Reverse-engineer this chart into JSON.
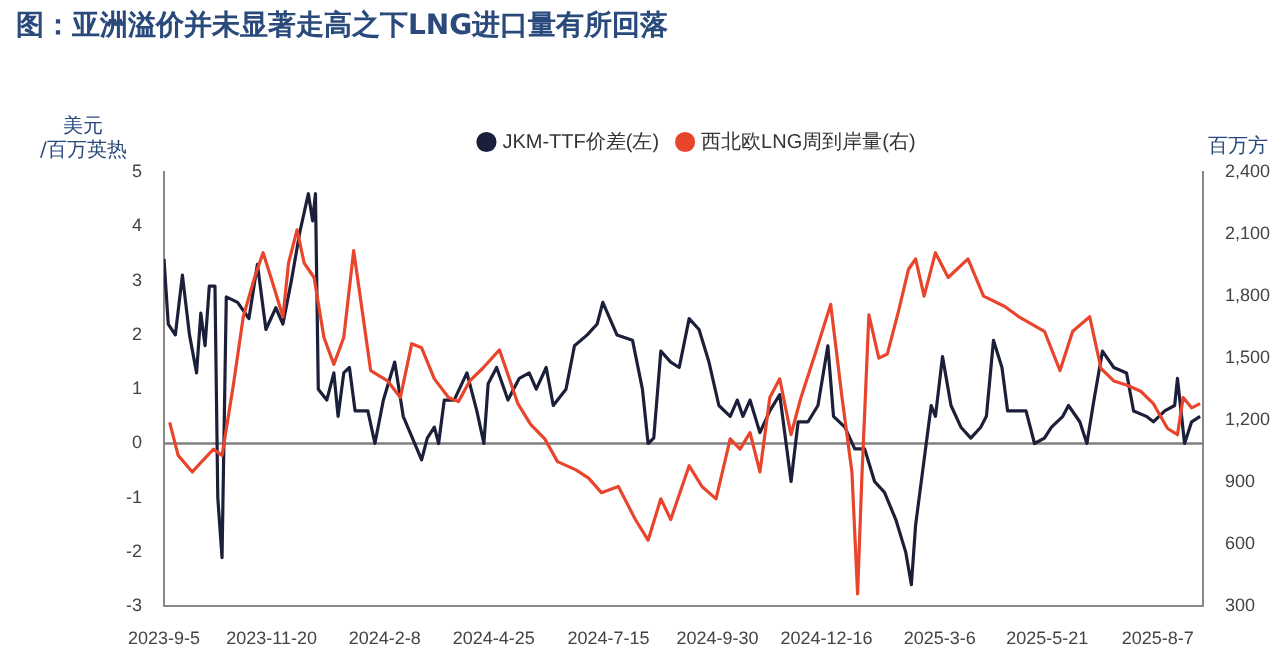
{
  "chart_data": {
    "type": "line",
    "title": "图：亚洲溢价并未显著走高之下LNG进口量有所回落",
    "ylabel": "美元/百万英热",
    "y2label": "百万方",
    "xlim": [
      "2023-09-05",
      "2025-09-08"
    ],
    "xticks": [
      {
        "value": "2023-09-05",
        "label": "2023-9-5"
      },
      {
        "value": "2023-11-20",
        "label": "2023-11-20"
      },
      {
        "value": "2024-02-08",
        "label": "2024-2-8"
      },
      {
        "value": "2024-04-25",
        "label": "2024-4-25"
      },
      {
        "value": "2024-07-15",
        "label": "2024-7-15"
      },
      {
        "value": "2024-09-30",
        "label": "2024-9-30"
      },
      {
        "value": "2024-12-16",
        "label": "2024-12-16"
      },
      {
        "value": "2025-03-06",
        "label": "2025-3-6"
      },
      {
        "value": "2025-05-21",
        "label": "2025-5-21"
      },
      {
        "value": "2025-08-07",
        "label": "2025-8-7"
      }
    ],
    "ylim": [
      -3,
      5
    ],
    "yticks": [
      -3,
      -2,
      -1,
      0,
      1,
      2,
      3,
      4,
      5
    ],
    "y2lim": [
      300,
      2400
    ],
    "y2ticks": [
      {
        "value": 300,
        "label": "300"
      },
      {
        "value": 600,
        "label": "600"
      },
      {
        "value": 900,
        "label": "900"
      },
      {
        "value": 1200,
        "label": "1,200"
      },
      {
        "value": 1500,
        "label": "1,500"
      },
      {
        "value": 1800,
        "label": "1,800"
      },
      {
        "value": 2100,
        "label": "2,100"
      },
      {
        "value": 2400,
        "label": "2,400"
      }
    ],
    "grid": false,
    "legend": "top",
    "marker": "none",
    "line_style": "solid",
    "ref_lines": [
      {
        "axis": "y",
        "value": 0,
        "color": "#808080"
      }
    ],
    "series": [
      {
        "name": "西北欧LNG周到岸量(右)",
        "color": "#e8452c",
        "axis": "y2",
        "x": [
          "2023-09-09",
          "2023-09-15",
          "2023-09-25",
          "2023-10-03",
          "2023-10-10",
          "2023-10-16",
          "2023-10-24",
          "2023-10-31",
          "2023-11-08",
          "2023-11-14",
          "2023-11-20",
          "2023-11-28",
          "2023-12-02",
          "2023-12-08",
          "2023-12-13",
          "2023-12-20",
          "2023-12-27",
          "2024-01-03",
          "2024-01-10",
          "2024-01-17",
          "2024-01-23",
          "2024-01-29",
          "2024-02-10",
          "2024-02-19",
          "2024-02-27",
          "2024-03-05",
          "2024-03-14",
          "2024-03-24",
          "2024-03-31",
          "2024-04-08",
          "2024-04-17",
          "2024-04-29",
          "2024-05-04",
          "2024-05-12",
          "2024-05-21",
          "2024-05-31",
          "2024-06-09",
          "2024-06-22",
          "2024-07-01",
          "2024-07-10",
          "2024-07-22",
          "2024-08-03",
          "2024-08-12",
          "2024-08-21",
          "2024-08-28",
          "2024-09-10",
          "2024-09-19",
          "2024-09-29",
          "2024-10-09",
          "2024-10-16",
          "2024-10-23",
          "2024-10-30",
          "2024-11-06",
          "2024-11-13",
          "2024-11-21",
          "2024-11-28",
          "2024-12-08",
          "2024-12-19",
          "2024-12-27",
          "2025-01-03",
          "2025-01-07",
          "2025-01-10",
          "2025-01-15",
          "2025-01-22",
          "2025-01-28",
          "2025-02-05",
          "2025-02-12",
          "2025-02-17",
          "2025-02-23",
          "2025-03-03",
          "2025-03-12",
          "2025-03-26",
          "2025-04-06",
          "2025-04-21",
          "2025-05-01",
          "2025-05-19",
          "2025-05-30",
          "2025-06-08",
          "2025-06-20",
          "2025-06-28",
          "2025-07-07",
          "2025-07-16",
          "2025-07-26",
          "2025-08-04",
          "2025-08-14",
          "2025-08-21",
          "2025-08-25",
          "2025-08-31",
          "2025-09-06"
        ],
        "values": [
          1190,
          1030,
          950,
          1010,
          1060,
          1030,
          1370,
          1700,
          1890,
          2010,
          1880,
          1700,
          1960,
          2120,
          1960,
          1890,
          1600,
          1470,
          1600,
          2020,
          1730,
          1440,
          1390,
          1310,
          1570,
          1550,
          1400,
          1310,
          1290,
          1390,
          1450,
          1540,
          1440,
          1280,
          1180,
          1110,
          1000,
          960,
          920,
          850,
          880,
          720,
          620,
          820,
          720,
          980,
          880,
          820,
          1110,
          1060,
          1140,
          950,
          1310,
          1400,
          1130,
          1310,
          1520,
          1760,
          1310,
          950,
          360,
          920,
          1710,
          1500,
          1520,
          1730,
          1930,
          1980,
          1800,
          2010,
          1890,
          1980,
          1800,
          1750,
          1700,
          1630,
          1440,
          1630,
          1700,
          1450,
          1390,
          1370,
          1340,
          1280,
          1160,
          1130,
          1310,
          1260,
          1280
        ]
      },
      {
        "name": "JKM-TTF价差(左)",
        "color": "#1c1f3a",
        "axis": "y",
        "x": [
          "2023-09-05",
          "2023-09-08",
          "2023-09-13",
          "2023-09-18",
          "2023-09-23",
          "2023-09-28",
          "2023-10-01",
          "2023-10-04",
          "2023-10-07",
          "2023-10-11",
          "2023-10-13",
          "2023-10-16",
          "2023-10-19",
          "2023-10-27",
          "2023-11-04",
          "2023-11-10",
          "2023-11-16",
          "2023-11-23",
          "2023-11-28",
          "2023-12-04",
          "2023-12-10",
          "2023-12-16",
          "2023-12-19",
          "2023-12-21",
          "2023-12-23",
          "2023-12-29",
          "2024-01-03",
          "2024-01-06",
          "2024-01-10",
          "2024-01-14",
          "2024-01-18",
          "2024-01-27",
          "2024-02-01",
          "2024-02-07",
          "2024-02-15",
          "2024-02-21",
          "2024-03-05",
          "2024-03-09",
          "2024-03-14",
          "2024-03-17",
          "2024-03-21",
          "2024-03-28",
          "2024-04-06",
          "2024-04-13",
          "2024-04-18",
          "2024-04-21",
          "2024-04-27",
          "2024-05-05",
          "2024-05-13",
          "2024-05-20",
          "2024-05-25",
          "2024-06-01",
          "2024-06-06",
          "2024-06-15",
          "2024-06-21",
          "2024-06-30",
          "2024-07-07",
          "2024-07-11",
          "2024-07-21",
          "2024-08-01",
          "2024-08-08",
          "2024-08-12",
          "2024-08-16",
          "2024-08-21",
          "2024-08-28",
          "2024-09-03",
          "2024-09-10",
          "2024-09-17",
          "2024-09-24",
          "2024-10-01",
          "2024-10-09",
          "2024-10-14",
          "2024-10-18",
          "2024-10-23",
          "2024-10-30",
          "2024-11-06",
          "2024-11-13",
          "2024-11-21",
          "2024-11-26",
          "2024-12-03",
          "2024-12-10",
          "2024-12-17",
          "2024-12-21",
          "2024-12-29",
          "2025-01-05",
          "2025-01-12",
          "2025-01-19",
          "2025-01-26",
          "2025-02-03",
          "2025-02-10",
          "2025-02-14",
          "2025-02-17",
          "2025-02-22",
          "2025-02-28",
          "2025-03-03",
          "2025-03-08",
          "2025-03-14",
          "2025-03-21",
          "2025-03-28",
          "2025-04-04",
          "2025-04-08",
          "2025-04-13",
          "2025-04-19",
          "2025-04-23",
          "2025-04-30",
          "2025-05-06",
          "2025-05-12",
          "2025-05-19",
          "2025-05-24",
          "2025-06-01",
          "2025-06-05",
          "2025-06-13",
          "2025-06-18",
          "2025-06-23",
          "2025-06-29",
          "2025-07-07",
          "2025-07-16",
          "2025-07-21",
          "2025-07-30",
          "2025-08-04",
          "2025-08-12",
          "2025-08-19",
          "2025-08-21",
          "2025-08-26",
          "2025-08-31",
          "2025-09-06"
        ],
        "values": [
          3.4,
          2.2,
          2.0,
          3.1,
          2.0,
          1.3,
          2.4,
          1.8,
          2.9,
          2.9,
          -1.0,
          -2.1,
          2.7,
          2.6,
          2.3,
          3.3,
          2.1,
          2.5,
          2.2,
          3.0,
          3.9,
          4.6,
          4.1,
          4.6,
          1.0,
          0.8,
          1.3,
          0.5,
          1.3,
          1.4,
          0.6,
          0.6,
          0.0,
          0.8,
          1.5,
          0.5,
          -0.3,
          0.1,
          0.3,
          0.0,
          0.8,
          0.8,
          1.3,
          0.6,
          0.0,
          1.1,
          1.4,
          0.8,
          1.2,
          1.3,
          1.0,
          1.4,
          0.7,
          1.0,
          1.8,
          2.0,
          2.2,
          2.6,
          2.0,
          1.9,
          1.0,
          0.0,
          0.1,
          1.7,
          1.5,
          1.4,
          2.3,
          2.1,
          1.5,
          0.7,
          0.5,
          0.8,
          0.5,
          0.8,
          0.2,
          0.6,
          0.9,
          -0.7,
          0.4,
          0.4,
          0.7,
          1.8,
          0.5,
          0.3,
          -0.1,
          -0.1,
          -0.7,
          -0.9,
          -1.4,
          -2.0,
          -2.6,
          -1.5,
          -0.5,
          0.7,
          0.5,
          1.6,
          0.7,
          0.3,
          0.1,
          0.3,
          0.5,
          1.9,
          1.4,
          0.6,
          0.6,
          0.6,
          0.0,
          0.1,
          0.3,
          0.5,
          0.7,
          0.4,
          0.0,
          0.8,
          1.7,
          1.4,
          1.3,
          0.6,
          0.5,
          0.4,
          0.6,
          0.7,
          1.2,
          0.0,
          0.4,
          0.5
        ]
      }
    ]
  }
}
